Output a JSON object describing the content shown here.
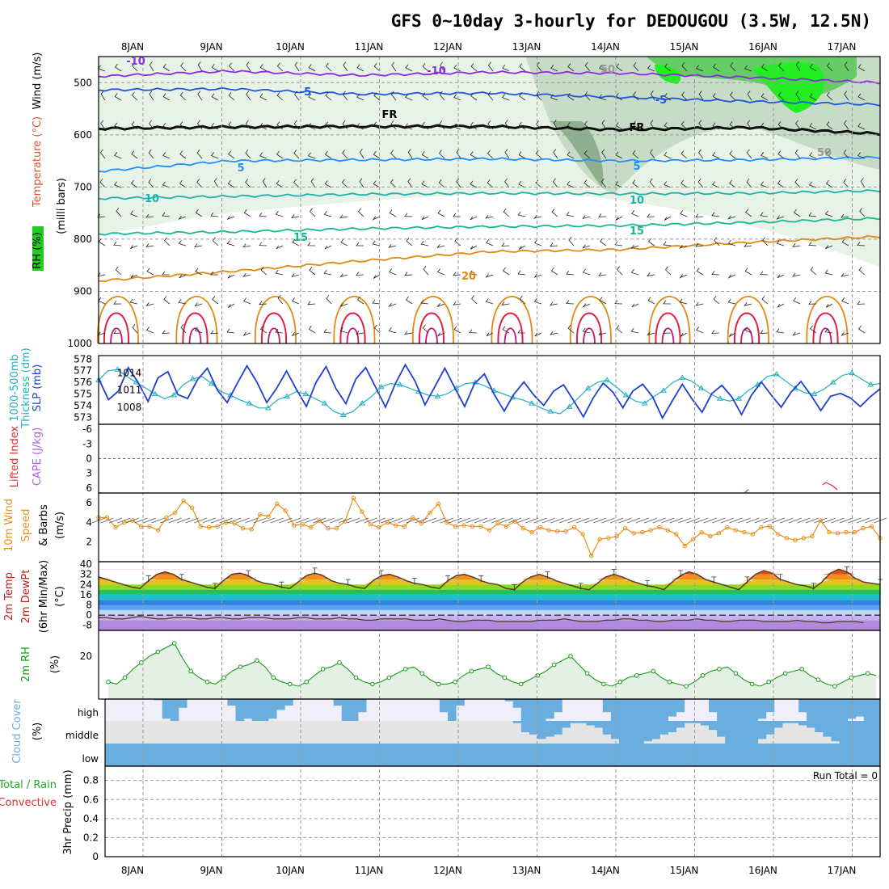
{
  "title": "GFS 0~10day 3-hourly for DEDOUGOU (3.5W, 12.5N)",
  "dates": [
    "8JAN",
    "9JAN",
    "10JAN",
    "11JAN",
    "12JAN",
    "13JAN",
    "14JAN",
    "15JAN",
    "16JAN",
    "17JAN"
  ],
  "run_total": "Run Total = 0",
  "colors": {
    "rh_light": "#e8f3e8",
    "rh_mid": "#c6dcc6",
    "rh_dark": "#8fb08f",
    "rh_green": "#22ee22",
    "temp_purple": "#8a2be2",
    "temp_blue": "#2255dd",
    "temp_lightblue": "#1e90ff",
    "temp_teal": "#20b2aa",
    "temp_green": "#18b890",
    "temp_orange": "#e08a10",
    "temp_red": "#e02040",
    "slp": "#1f3fcf",
    "thickness": "#22b0c0",
    "wind10": "#e8901a",
    "rh2m": "#1a9a1a",
    "cloud": "#6aaee0",
    "cloud_bg_high": "#f0eef8",
    "cloud_bg_mid": "#e4e4e4"
  },
  "chart_data": [
    {
      "type": "contour",
      "panel": "upper-air",
      "left_labels": [
        "Wind (m/s)",
        "Temperature (°C)",
        "RH (%)",
        "(milli bars)"
      ],
      "y_ticks": [
        "500",
        "600",
        "700",
        "800",
        "900",
        "1000"
      ],
      "contour_labels": [
        "-10",
        "-10",
        "-5",
        "-5",
        "FR",
        "FR",
        "5",
        "5",
        "10",
        "10",
        "15",
        "15",
        "20",
        "50",
        "50"
      ],
      "temperature_isotherms": [
        {
          "label": "-10",
          "pressure": [
            488,
            478,
            486,
            480,
            482,
            490,
            500
          ]
        },
        {
          "label": "-5",
          "pressure": [
            514,
            512,
            522,
            520,
            528,
            536,
            542
          ]
        },
        {
          "label": "FR",
          "pressure": [
            588,
            585,
            584,
            584,
            590,
            586,
            598
          ]
        },
        {
          "label": "5",
          "pressure": [
            670,
            650,
            648,
            646,
            650,
            648,
            643
          ]
        },
        {
          "label": "10",
          "pressure": [
            722,
            718,
            714,
            712,
            713,
            712,
            707
          ]
        },
        {
          "label": "15",
          "pressure": [
            790,
            786,
            780,
            776,
            774,
            768,
            760
          ]
        },
        {
          "label": "20",
          "pressure": [
            880,
            862,
            842,
            824,
            820,
            806,
            795
          ]
        }
      ]
    },
    {
      "type": "line",
      "panel": "slp-thickness",
      "left_labels": [
        "1000-500mb",
        "Thickness (dm)",
        "SLP (mb)"
      ],
      "y_ticks_left": [
        "573",
        "574",
        "575",
        "576",
        "577",
        "578"
      ],
      "y_ticks_right": [
        "1008",
        "1011",
        "1014"
      ],
      "series": [
        {
          "name": "SLP (mb)",
          "values": [
            1013.0,
            1009.3,
            1010.8,
            1014.9,
            1012.3,
            1009.0,
            1013.1,
            1014.2,
            1010.2,
            1009.5,
            1012.8,
            1014.8,
            1011.0,
            1008.8,
            1012.1,
            1015.2,
            1012.4,
            1008.8,
            1011.3,
            1014.3,
            1011.1,
            1008.1,
            1012.4,
            1015.1,
            1011.2,
            1008.6,
            1012.9,
            1014.9,
            1011.5,
            1008.0,
            1012.1,
            1015.4,
            1012.5,
            1008.4,
            1011.6,
            1014.8,
            1011.4,
            1008.1,
            1012.1,
            1013.8,
            1010.2,
            1007.3,
            1010.3,
            1012.4,
            1010.1,
            1008.3,
            1010.8,
            1011.9,
            1009.2,
            1006.3,
            1009.6,
            1012.2,
            1010.6,
            1007.9,
            1010.8,
            1012.0,
            1009.8,
            1006.1,
            1009.1,
            1012.0,
            1009.4,
            1007.1,
            1010.4,
            1011.8,
            1009.8,
            1006.7,
            1010.1,
            1012.4,
            1010.1,
            1008.0,
            1010.6,
            1012.5,
            1010.1,
            1007.4,
            1009.9,
            1010.4,
            1009.6,
            1008.1,
            1009.8,
            1011.2
          ]
        },
        {
          "name": "1000-500mb Thickness (dm)",
          "values": [
            576.2,
            577.0,
            577.1,
            576.5,
            576.0,
            575.5,
            575.0,
            574.6,
            574.9,
            575.8,
            576.3,
            576.5,
            575.9,
            575.2,
            574.9,
            574.5,
            574.2,
            573.8,
            573.8,
            574.5,
            574.8,
            575.2,
            575.0,
            574.6,
            574.2,
            573.5,
            573.2,
            573.5,
            574.2,
            574.8,
            575.6,
            575.9,
            575.8,
            575.5,
            575.2,
            574.9,
            574.8,
            575.0,
            575.5,
            575.9,
            576.0,
            575.7,
            575.3,
            575.0,
            574.7,
            574.5,
            574.2,
            573.8,
            573.5,
            573.3,
            573.9,
            574.7,
            575.5,
            576.0,
            576.2,
            575.6,
            574.9,
            574.4,
            574.2,
            574.8,
            575.3,
            576.0,
            576.4,
            576.1,
            575.5,
            575.0,
            574.6,
            574.4,
            574.6,
            575.3,
            575.8,
            576.5,
            576.7,
            576.1,
            575.5,
            575.1,
            575.0,
            575.4,
            576.0,
            576.6,
            576.8,
            576.3,
            575.8,
            575.9
          ]
        }
      ]
    },
    {
      "type": "line",
      "panel": "stability",
      "left_labels": [
        "Lifted Index",
        "CAPE (J/kg)"
      ],
      "y_ticks": [
        "-6",
        "-3",
        "0",
        "3",
        "6"
      ],
      "note": "Lifted Index ~ zero line; CAPE near zero"
    },
    {
      "type": "line",
      "panel": "wind10m",
      "left_labels": [
        "10m Wind",
        "Speed",
        "& Barbs",
        "(m/s)"
      ],
      "y_ticks": [
        "2",
        "4",
        "6"
      ],
      "series": [
        {
          "name": "10m Wind Speed",
          "values": [
            4.5,
            4.5,
            3.5,
            4.0,
            4.2,
            3.6,
            3.6,
            3.2,
            4.5,
            5.0,
            6.2,
            5.5,
            3.6,
            3.5,
            3.6,
            4.0,
            3.9,
            3.4,
            3.3,
            4.8,
            4.6,
            5.9,
            5.2,
            3.7,
            3.8,
            3.5,
            4.2,
            3.4,
            3.4,
            4.1,
            6.5,
            5.1,
            3.8,
            3.5,
            4.0,
            3.7,
            3.6,
            4.5,
            3.9,
            5.0,
            5.9,
            4.0,
            3.6,
            3.7,
            3.6,
            3.6,
            3.2,
            3.9,
            3.6,
            4.1,
            3.4,
            3.0,
            3.5,
            3.2,
            3.1,
            3.1,
            3.5,
            2.8,
            0.6,
            2.3,
            2.4,
            2.6,
            3.4,
            2.9,
            3.0,
            3.2,
            3.5,
            3.2,
            2.8,
            1.6,
            2.3,
            3.0,
            2.6,
            2.9,
            3.5,
            3.2,
            3.0,
            2.8,
            3.5,
            3.6,
            2.8,
            2.4,
            2.2,
            2.4,
            2.6,
            4.2,
            3.0,
            2.9,
            3.0,
            3.0,
            3.4,
            3.6,
            2.4
          ]
        }
      ]
    },
    {
      "type": "area",
      "panel": "temp2m",
      "left_labels": [
        "2m Temp",
        "2m DewPt",
        "(6hr Min/Max)",
        "(°C)"
      ],
      "y_ticks": [
        "-8",
        "0",
        "8",
        "16",
        "24",
        "32",
        "40"
      ],
      "series": [
        {
          "name": "2m Temp",
          "values": [
            30,
            28,
            26,
            24,
            22,
            21,
            27,
            32,
            34,
            32,
            28,
            26,
            24,
            22,
            21,
            27,
            32,
            33,
            31,
            27,
            25,
            24,
            22,
            21,
            26,
            31,
            33,
            31,
            27,
            25,
            24,
            22,
            21,
            27,
            31,
            32,
            30,
            27,
            25,
            24,
            22,
            21,
            27,
            31,
            32,
            30,
            27,
            25,
            24,
            21,
            20,
            26,
            30,
            32,
            30,
            27,
            25,
            23,
            21,
            20,
            25,
            30,
            32,
            30,
            27,
            25,
            23,
            22,
            20,
            26,
            31,
            34,
            32,
            28,
            26,
            24,
            22,
            20,
            26,
            32,
            35,
            33,
            28,
            26,
            24,
            23,
            21,
            26,
            33,
            36,
            34,
            29,
            26,
            25,
            24
          ]
        },
        {
          "name": "2m DewPt",
          "values": [
            -2,
            -2,
            -3,
            -3,
            -2,
            -1,
            -2,
            -3,
            -3,
            -2,
            -2,
            -2,
            -3,
            -3,
            -2,
            -2,
            -3,
            -3,
            -2,
            -2,
            -2,
            -3,
            -3,
            -3,
            -2,
            -2,
            -3,
            -3,
            -3,
            -2,
            -3,
            -3,
            -4,
            -4,
            -3,
            -3,
            -3,
            -3,
            -4,
            -4,
            -4,
            -3,
            -4,
            -5,
            -5,
            -4,
            -4,
            -4,
            -5,
            -5,
            -5,
            -5,
            -5,
            -4,
            -4,
            -4,
            -3,
            -4,
            -5,
            -5,
            -5,
            -4,
            -4,
            -3,
            -3,
            -4,
            -4,
            -5,
            -5,
            -4,
            -4,
            -4,
            -3,
            -4,
            -4,
            -5,
            -5,
            -4,
            -4,
            -4,
            -5,
            -5,
            -5,
            -5,
            -4,
            -5,
            -5,
            -6,
            -6,
            -5,
            -5,
            -5,
            -6
          ]
        }
      ]
    },
    {
      "type": "line",
      "panel": "rh2m",
      "left_labels": [
        "2m RH",
        "(%)"
      ],
      "y_ticks": [
        "20"
      ],
      "series": [
        {
          "name": "2m RH",
          "values": [
            8,
            7,
            10,
            14,
            17,
            20,
            22,
            24,
            26,
            19,
            13,
            10,
            8,
            7,
            10,
            13,
            15,
            16,
            18,
            15,
            10,
            8,
            7,
            6,
            8,
            11,
            14,
            15,
            17,
            14,
            10,
            8,
            7,
            8,
            10,
            12,
            14,
            15,
            12,
            9,
            7,
            7,
            8,
            11,
            13,
            14,
            15,
            12,
            10,
            8,
            7,
            9,
            11,
            13,
            16,
            18,
            20,
            16,
            12,
            9,
            7,
            6,
            8,
            10,
            11,
            12,
            13,
            10,
            8,
            7,
            6,
            8,
            11,
            13,
            14,
            15,
            12,
            9,
            7,
            6,
            8,
            10,
            12,
            13,
            14,
            11,
            9,
            7,
            6,
            8,
            10,
            11,
            12,
            11
          ]
        }
      ]
    },
    {
      "type": "bar",
      "panel": "cloud",
      "left_labels": [
        "Cloud Cover",
        "(%)"
      ],
      "layers": [
        "high",
        "middle",
        "low"
      ],
      "series": [
        {
          "name": "high",
          "values": [
            0,
            0,
            0,
            0,
            0,
            0,
            5,
            90,
            100,
            40,
            0,
            0,
            0,
            0,
            0,
            30,
            100,
            90,
            100,
            100,
            90,
            50,
            30,
            0,
            0,
            0,
            0,
            0,
            30,
            100,
            100,
            60,
            0,
            0,
            0,
            0,
            0,
            0,
            0,
            0,
            0,
            60,
            100,
            30,
            0,
            0,
            0,
            0,
            0,
            10,
            40,
            100,
            100,
            100,
            90,
            60,
            0,
            0,
            0,
            0,
            0,
            60,
            100,
            100,
            100,
            100,
            100,
            100,
            100,
            80,
            60,
            0,
            0,
            0,
            60,
            100,
            100,
            100,
            100,
            100,
            90,
            60,
            0,
            0,
            0,
            60,
            100,
            100,
            100,
            100,
            100,
            90,
            80,
            100,
            100
          ]
        },
        {
          "name": "middle",
          "values": [
            0,
            0,
            0,
            0,
            0,
            0,
            0,
            0,
            0,
            0,
            0,
            0,
            0,
            0,
            0,
            0,
            0,
            0,
            0,
            0,
            0,
            0,
            0,
            0,
            0,
            0,
            0,
            0,
            0,
            0,
            0,
            0,
            0,
            0,
            0,
            0,
            0,
            0,
            0,
            0,
            0,
            0,
            0,
            0,
            0,
            0,
            0,
            0,
            0,
            0,
            10,
            50,
            60,
            80,
            70,
            60,
            30,
            10,
            10,
            20,
            30,
            60,
            80,
            100,
            100,
            100,
            90,
            80,
            60,
            50,
            30,
            10,
            10,
            20,
            40,
            70,
            100,
            100,
            100,
            100,
            80,
            60,
            30,
            10,
            10,
            20,
            30,
            50,
            70,
            90,
            100,
            100,
            100,
            100,
            100
          ]
        },
        {
          "name": "low",
          "values": [
            100,
            100,
            100,
            100,
            100,
            100,
            100,
            100,
            100,
            100,
            100,
            100,
            100,
            100,
            100,
            100,
            100,
            100,
            100,
            100,
            100,
            100,
            100,
            100,
            100,
            100,
            100,
            100,
            100,
            100,
            100,
            100,
            100,
            100,
            100,
            100,
            100,
            100,
            100,
            100,
            100,
            100,
            100,
            100,
            100,
            100,
            100,
            100,
            100,
            100,
            100,
            100,
            100,
            100,
            100,
            100,
            100,
            100,
            100,
            100,
            100,
            100,
            100,
            100,
            100,
            100,
            100,
            100,
            100,
            100,
            100,
            100,
            100,
            100,
            100,
            100,
            100,
            100,
            100,
            100,
            100,
            100,
            100,
            100,
            100,
            100,
            100,
            100,
            100,
            100,
            100,
            100,
            100,
            100,
            100
          ]
        }
      ]
    },
    {
      "type": "bar",
      "panel": "precip",
      "left_labels": [
        "Total / Rain",
        "Convective",
        "3hr Precip (mm)"
      ],
      "y_ticks": [
        "0",
        "0.2",
        "0.4",
        "0.6",
        "0.8"
      ],
      "values": [
        0
      ]
    }
  ]
}
